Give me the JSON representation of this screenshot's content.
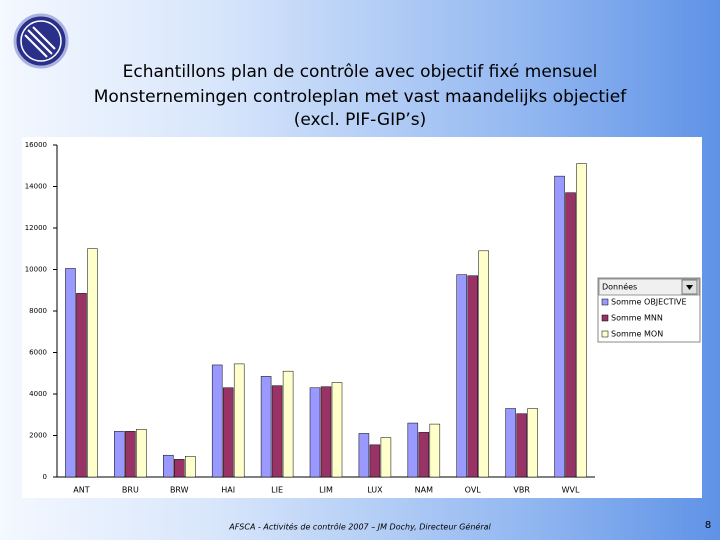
{
  "chart_data": {
    "type": "bar",
    "title": [
      "Echantillons plan de contrôle avec objectif fixé mensuel",
      "Monsternemingen controleplan met vast maandelijks objectief",
      "(excl. PIF-GIP’s)"
    ],
    "categories": [
      "ANT",
      "BRU",
      "BRW",
      "HAI",
      "LIE",
      "LIM",
      "LUX",
      "NAM",
      "OVL",
      "VBR",
      "WVL"
    ],
    "series": [
      {
        "name": "Somme OBJECTIVE",
        "color": "#9999ff",
        "values": [
          10050,
          2200,
          1050,
          5400,
          4850,
          4300,
          2100,
          2600,
          9750,
          3300,
          14500
        ]
      },
      {
        "name": "Somme MNN",
        "color": "#993366",
        "values": [
          8850,
          2200,
          850,
          4300,
          4400,
          4350,
          1550,
          2150,
          9700,
          3050,
          13700
        ]
      },
      {
        "name": "Somme MON",
        "color": "#ffffcc",
        "values": [
          11000,
          2300,
          1000,
          5450,
          5100,
          4550,
          1900,
          2550,
          10900,
          3300,
          15100
        ]
      }
    ],
    "ylim": [
      0,
      16000
    ],
    "yticks": [
      0,
      2000,
      4000,
      6000,
      8000,
      10000,
      12000,
      14000,
      16000
    ],
    "grid": false,
    "legend_title": "Données",
    "legend_position": "right"
  },
  "footer": "AFSCA - Activités de contrôle 2007 – JM Dochy, Directeur Général",
  "page_number": "8"
}
